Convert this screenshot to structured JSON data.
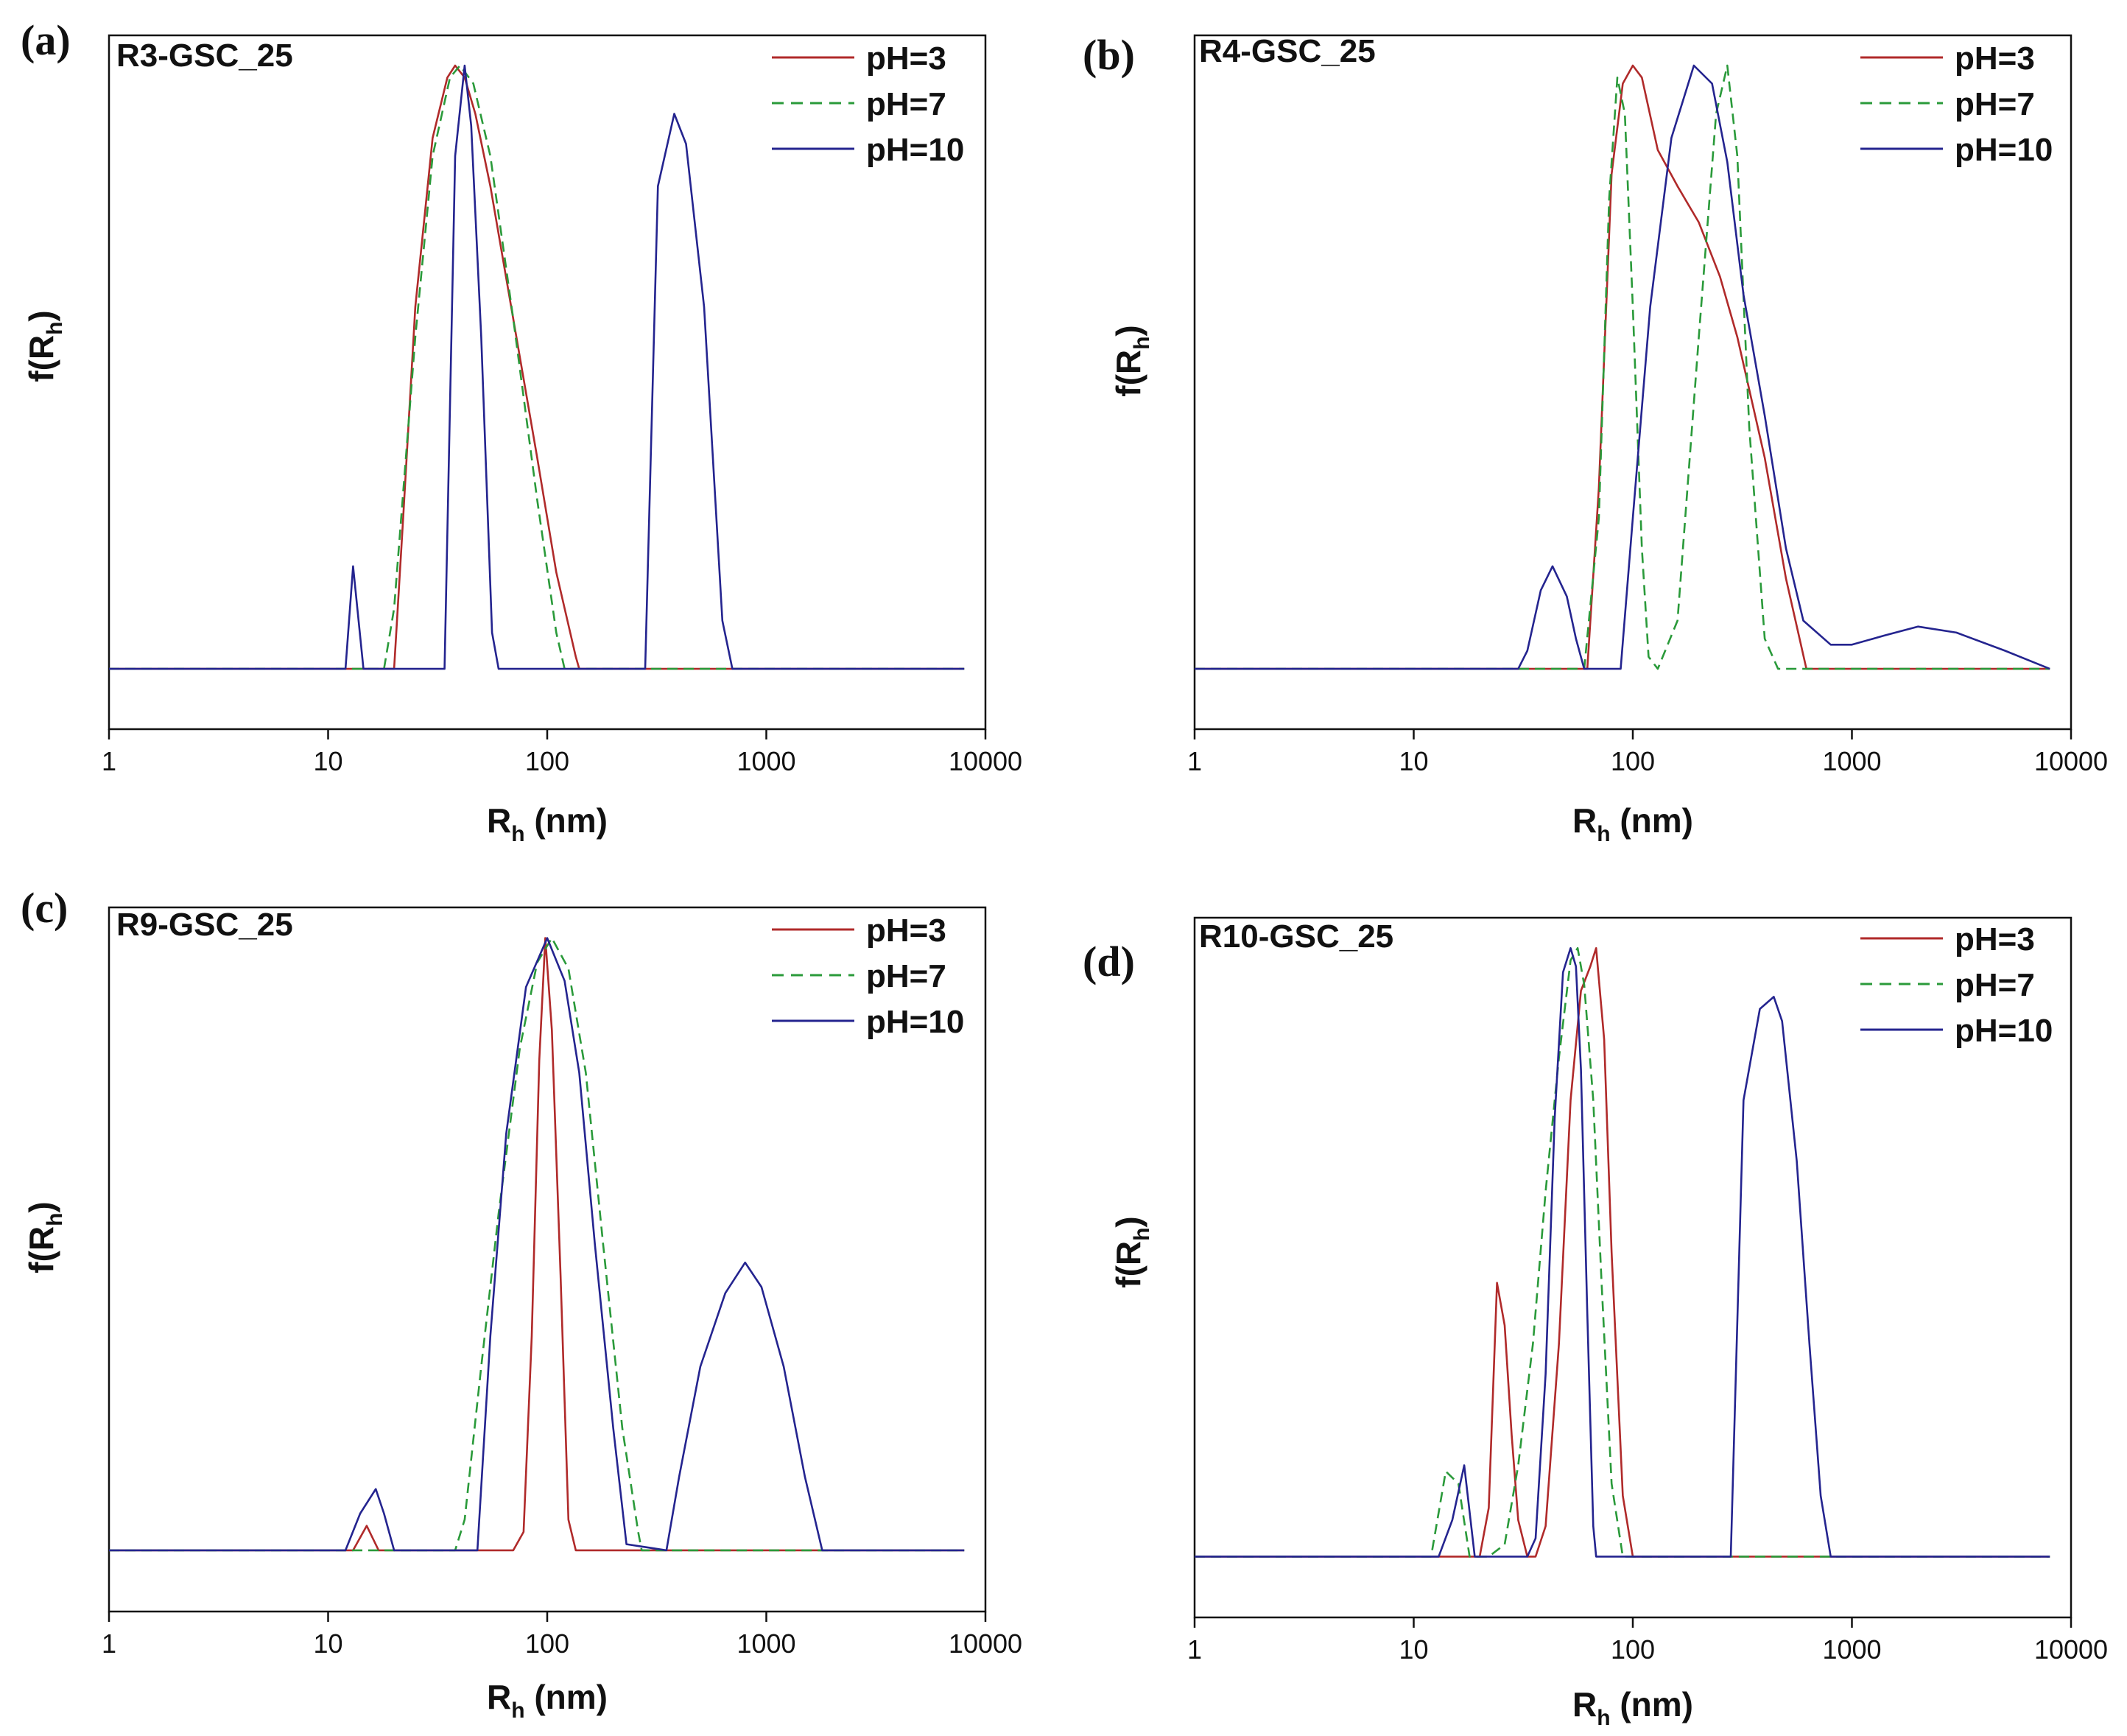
{
  "colors": {
    "pH=3": "#b02a2a",
    "pH=7": "#2a9a3a",
    "pH=10": "#24248f",
    "frame": "#111111"
  },
  "chart_data": [
    {
      "type": "line",
      "panel": "(a)",
      "title": "R3-GSC_25",
      "xlabel": "R",
      "xlabel_sub": "h",
      "xlabel_unit": " (nm)",
      "ylabel": "f(R",
      "ylabel_sub": "h",
      "ylabel_close": ")",
      "xscale": "log",
      "xlim": [
        1,
        10000
      ],
      "xticks": [
        "1",
        "10",
        "100",
        "1000",
        "10000"
      ],
      "ylim": [
        -0.1,
        1.05
      ],
      "legend": [
        "pH=3",
        "pH=7",
        "pH=10"
      ],
      "legend_position": "top-right",
      "series": [
        {
          "name": "pH=3",
          "x": [
            1,
            20,
            22,
            25,
            30,
            35,
            38,
            42,
            47,
            55,
            70,
            90,
            110,
            135,
            140,
            8000
          ],
          "y": [
            0,
            0,
            0.25,
            0.6,
            0.88,
            0.98,
            1.0,
            0.98,
            0.92,
            0.8,
            0.58,
            0.35,
            0.16,
            0.02,
            0,
            0
          ]
        },
        {
          "name": "pH=7",
          "x": [
            1,
            18,
            20,
            25,
            30,
            36,
            40,
            46,
            55,
            70,
            90,
            110,
            120,
            8000
          ],
          "y": [
            0,
            0,
            0.1,
            0.55,
            0.85,
            0.98,
            1.0,
            0.97,
            0.85,
            0.58,
            0.28,
            0.06,
            0,
            0
          ]
        },
        {
          "name": "pH=10",
          "x": [
            1,
            12,
            13,
            14.5,
            34,
            38,
            42,
            45,
            50,
            56,
            60,
            280,
            320,
            380,
            430,
            520,
            630,
            700,
            8000
          ],
          "y": [
            0,
            0,
            0.17,
            0,
            0,
            0.85,
            1.0,
            0.9,
            0.55,
            0.06,
            0,
            0,
            0.8,
            0.92,
            0.87,
            0.6,
            0.08,
            0,
            0
          ]
        }
      ]
    },
    {
      "type": "line",
      "panel": "(b)",
      "title": "R4-GSC_25",
      "xlabel": "R",
      "xlabel_sub": "h",
      "xlabel_unit": " (nm)",
      "ylabel": "f(R",
      "ylabel_sub": "h",
      "ylabel_close": ")",
      "xscale": "log",
      "xlim": [
        1,
        10000
      ],
      "xticks": [
        "1",
        "10",
        "100",
        "1000",
        "10000"
      ],
      "ylim": [
        -0.1,
        1.05
      ],
      "legend": [
        "pH=3",
        "pH=7",
        "pH=10"
      ],
      "legend_position": "top-right",
      "series": [
        {
          "name": "pH=3",
          "x": [
            1,
            62,
            70,
            80,
            90,
            100,
            110,
            130,
            160,
            200,
            250,
            300,
            400,
            500,
            620,
            8000
          ],
          "y": [
            0,
            0,
            0.3,
            0.82,
            0.97,
            1.0,
            0.98,
            0.86,
            0.8,
            0.74,
            0.65,
            0.55,
            0.35,
            0.15,
            0,
            0
          ]
        },
        {
          "name": "pH=7",
          "x": [
            1,
            60,
            70,
            78,
            85,
            92,
            100,
            110,
            118,
            130,
            160,
            200,
            240,
            270,
            300,
            340,
            400,
            460,
            8000
          ],
          "y": [
            0,
            0,
            0.25,
            0.78,
            0.98,
            0.92,
            0.6,
            0.2,
            0.02,
            0,
            0.08,
            0.55,
            0.92,
            1.0,
            0.85,
            0.4,
            0.05,
            0,
            0
          ]
        },
        {
          "name": "pH=10",
          "x": [
            1,
            30,
            33,
            38,
            43,
            50,
            55,
            60,
            88,
            100,
            120,
            150,
            190,
            230,
            270,
            320,
            400,
            500,
            600,
            800,
            1000,
            1400,
            2000,
            3000,
            5000,
            8000
          ],
          "y": [
            0,
            0,
            0.03,
            0.13,
            0.17,
            0.12,
            0.05,
            0,
            0,
            0.25,
            0.6,
            0.88,
            1.0,
            0.97,
            0.84,
            0.62,
            0.42,
            0.2,
            0.08,
            0.04,
            0.04,
            0.055,
            0.07,
            0.06,
            0.03,
            0
          ]
        }
      ]
    },
    {
      "type": "line",
      "panel": "(c)",
      "title": "R9-GSC_25",
      "xlabel": "R",
      "xlabel_sub": "h",
      "xlabel_unit": " (nm)",
      "ylabel": "f(R",
      "ylabel_sub": "h",
      "ylabel_close": ")",
      "xscale": "log",
      "xlim": [
        1,
        10000
      ],
      "xticks": [
        "1",
        "10",
        "100",
        "1000",
        "10000"
      ],
      "ylim": [
        -0.1,
        1.05
      ],
      "legend": [
        "pH=3",
        "pH=7",
        "pH=10"
      ],
      "legend_position": "top-right",
      "series": [
        {
          "name": "pH=3",
          "x": [
            1,
            13,
            15,
            17,
            70,
            78,
            85,
            92,
            98,
            105,
            115,
            125,
            135,
            8000
          ],
          "y": [
            0,
            0,
            0.04,
            0,
            0,
            0.03,
            0.35,
            0.8,
            1.0,
            0.85,
            0.45,
            0.05,
            0,
            0
          ]
        },
        {
          "name": "pH=7",
          "x": [
            1,
            38,
            42,
            50,
            60,
            75,
            90,
            105,
            125,
            150,
            180,
            220,
            260,
            270,
            8000
          ],
          "y": [
            0,
            0,
            0.05,
            0.3,
            0.55,
            0.82,
            0.96,
            1.0,
            0.95,
            0.78,
            0.5,
            0.2,
            0.03,
            0,
            0
          ]
        },
        {
          "name": "pH=10",
          "x": [
            1,
            12,
            14,
            16.5,
            18,
            20,
            48,
            55,
            65,
            80,
            100,
            120,
            140,
            165,
            200,
            230,
            350,
            400,
            500,
            650,
            800,
            950,
            1200,
            1500,
            1800,
            8000
          ],
          "y": [
            0,
            0,
            0.06,
            0.1,
            0.06,
            0,
            0,
            0.35,
            0.68,
            0.92,
            1.0,
            0.93,
            0.78,
            0.5,
            0.2,
            0.01,
            0,
            0.12,
            0.3,
            0.42,
            0.47,
            0.43,
            0.3,
            0.12,
            0,
            0
          ]
        }
      ]
    },
    {
      "type": "line",
      "panel": "(d)",
      "title": "R10-GSC_25",
      "xlabel": "R",
      "xlabel_sub": "h",
      "xlabel_unit": " (nm)",
      "ylabel": "f(R",
      "ylabel_sub": "h",
      "ylabel_close": ")",
      "xscale": "log",
      "xlim": [
        1,
        10000
      ],
      "xticks": [
        "1",
        "10",
        "100",
        "1000",
        "10000"
      ],
      "ylim": [
        -0.1,
        1.05
      ],
      "legend": [
        "pH=3",
        "pH=7",
        "pH=10"
      ],
      "legend_position": "top-right",
      "series": [
        {
          "name": "pH=3",
          "x": [
            1,
            20,
            22,
            24,
            26,
            28,
            30,
            33,
            36,
            40,
            46,
            52,
            58,
            64,
            68,
            74,
            80,
            90,
            100,
            8000
          ],
          "y": [
            0,
            0,
            0.08,
            0.45,
            0.38,
            0.2,
            0.06,
            0,
            0,
            0.05,
            0.35,
            0.75,
            0.93,
            0.97,
            1.0,
            0.85,
            0.5,
            0.1,
            0,
            0
          ]
        },
        {
          "name": "pH=7",
          "x": [
            1,
            12,
            14,
            16,
            18,
            22,
            26,
            30,
            35,
            40,
            46,
            52,
            56,
            60,
            66,
            72,
            80,
            90,
            100,
            8000
          ],
          "y": [
            0,
            0,
            0.14,
            0.12,
            0,
            0,
            0.02,
            0.15,
            0.35,
            0.6,
            0.82,
            0.98,
            1.0,
            0.94,
            0.75,
            0.45,
            0.12,
            0,
            0,
            0
          ]
        },
        {
          "name": "pH=10",
          "x": [
            1,
            13,
            15,
            17,
            19,
            33,
            36,
            40,
            44,
            48,
            52,
            55,
            58,
            62,
            66,
            68,
            280,
            320,
            380,
            440,
            480,
            560,
            640,
            720,
            800,
            8000
          ],
          "y": [
            0,
            0,
            0.06,
            0.15,
            0,
            0,
            0.03,
            0.3,
            0.72,
            0.96,
            1.0,
            0.97,
            0.8,
            0.4,
            0.05,
            0,
            0,
            0.75,
            0.9,
            0.92,
            0.88,
            0.65,
            0.35,
            0.1,
            0,
            0
          ]
        }
      ]
    }
  ]
}
